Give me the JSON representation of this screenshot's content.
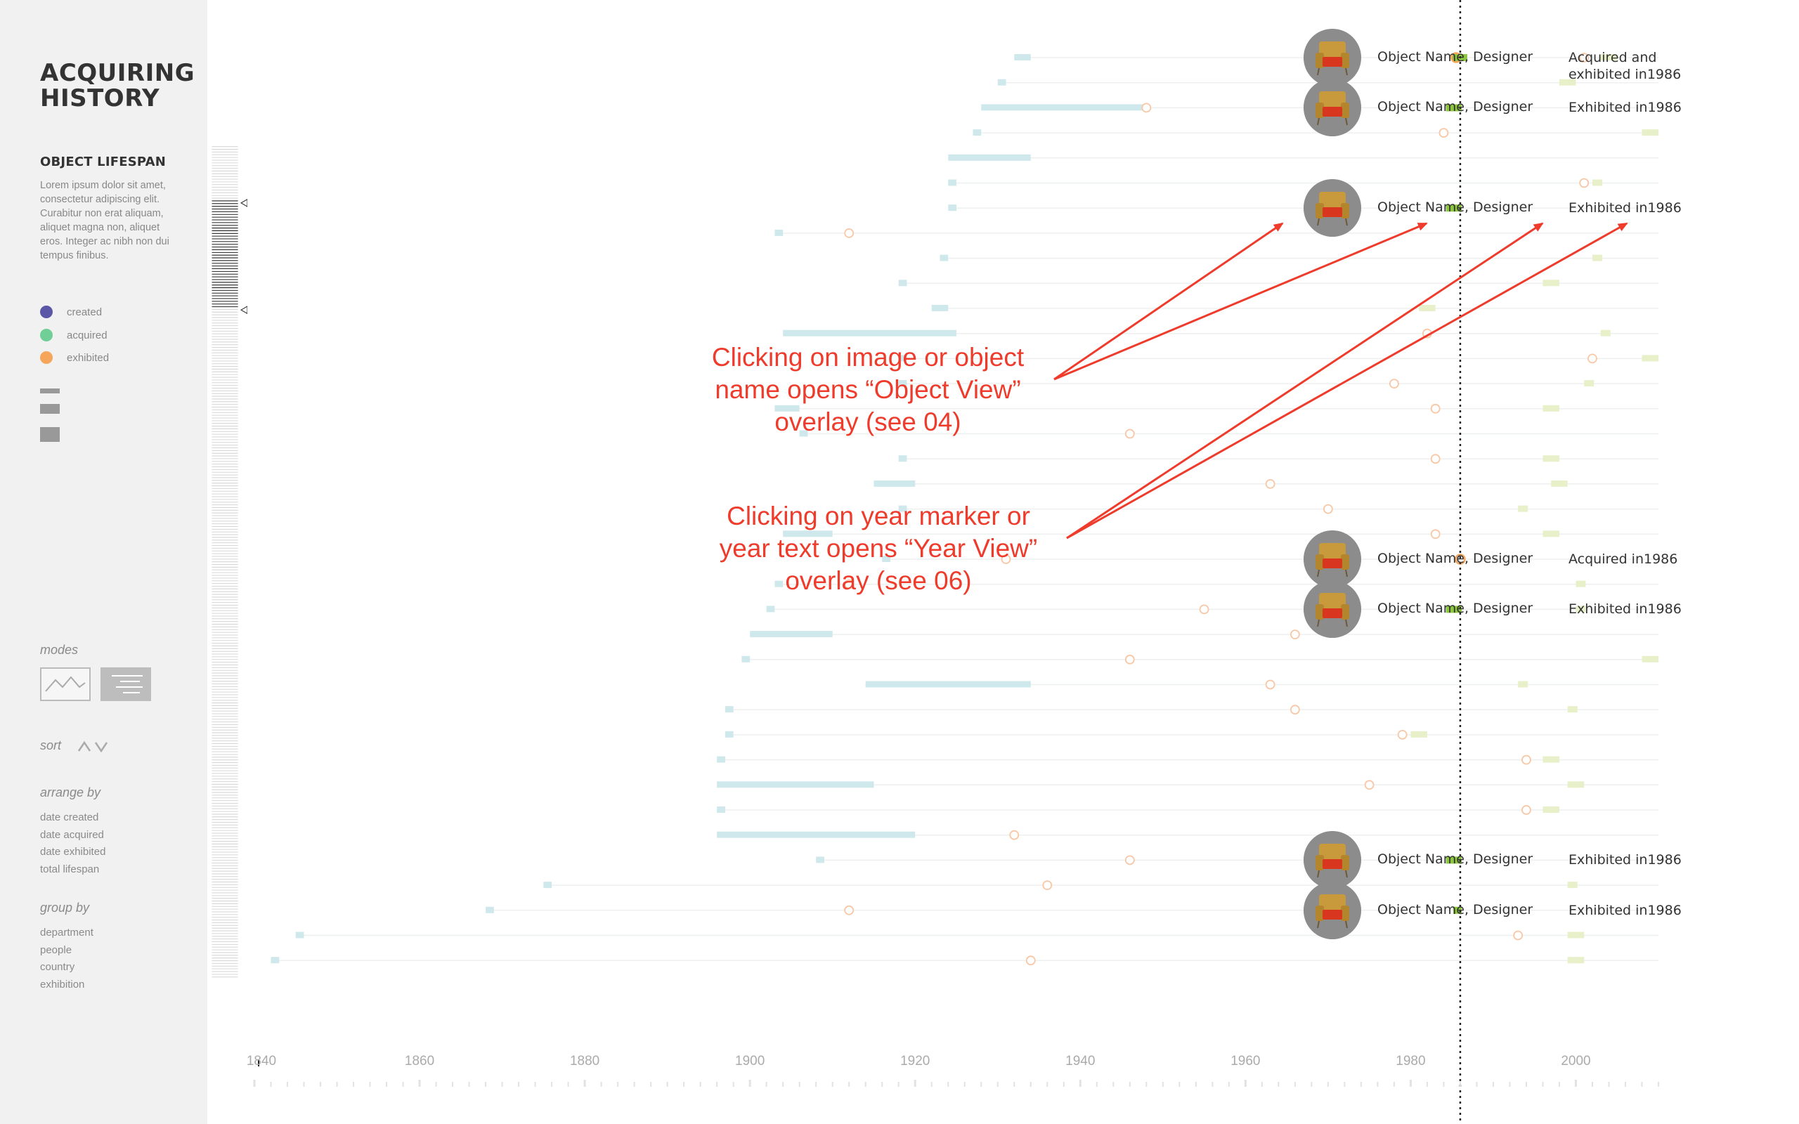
{
  "sidebar": {
    "title": "ACQUIRING HISTORY",
    "section_title": "OBJECT LIFESPAN",
    "description": "Lorem ipsum dolor sit amet, consectetur adipiscing elit. Curabitur non erat aliquam, aliquet magna non, aliquet eros. Integer ac nibh non dui tempus finibus.",
    "legend": [
      {
        "label": "created",
        "color": "#5b57a6"
      },
      {
        "label": "acquired",
        "color": "#6fcf97"
      },
      {
        "label": "exhibited",
        "color": "#f5a65b"
      }
    ],
    "modes_label": "modes",
    "sort_label": "sort",
    "arrange_label": "arrange by",
    "arrange_options": [
      "date created",
      "date acquired",
      "date exhibited",
      "total lifespan"
    ],
    "group_label": "group by",
    "group_options": [
      "department",
      "people",
      "country",
      "exhibition"
    ]
  },
  "timeline": {
    "axis_years": [
      "1840",
      "1860",
      "1880",
      "1900",
      "1920",
      "1940",
      "1960",
      "1980",
      "2000"
    ],
    "axis_min": 1840,
    "axis_max": 2010,
    "current_year": 1986,
    "colors": {
      "created": "#cfe8ec",
      "acquired": "#e7f0c9",
      "exhibited": "#f8c7a6",
      "highlight": "#8dc63f",
      "acquired_marker": "#f5a65b"
    },
    "rows": [
      {
        "created": [
          1932,
          1934
        ],
        "acquired": [
          2003,
          2005
        ],
        "exhibited": [
          2001
        ],
        "label": "Object Name, Designer",
        "status": "Acquired and\nexhibited in1986",
        "marker": "acquired-exhibited"
      },
      {
        "created": [
          1930,
          1931
        ],
        "acquired": [
          1998,
          2000
        ],
        "exhibited": []
      },
      {
        "created": [
          1928,
          1948
        ],
        "exhibited": [
          1948
        ],
        "acquired": [],
        "label": "Object Name, Designer",
        "status": "Exhibited in1986",
        "marker": "exhibited"
      },
      {
        "created": [
          1927,
          1928
        ],
        "acquired": [
          2008,
          2010
        ],
        "exhibited": [
          1984
        ]
      },
      {
        "created": [
          1924,
          1934
        ],
        "acquired": [],
        "exhibited": []
      },
      {
        "created": [
          1924,
          1925
        ],
        "acquired": [
          2002,
          2003
        ],
        "exhibited": [
          2001
        ]
      },
      {
        "created": [
          1924,
          1925
        ],
        "acquired": [],
        "exhibited": [],
        "label": "Object Name, Designer",
        "status": "Exhibited in1986",
        "marker": "exhibited"
      },
      {
        "created": [
          1903,
          1904
        ],
        "acquired": [],
        "exhibited": [
          1912
        ]
      },
      {
        "created": [
          1923,
          1924
        ],
        "acquired": [
          2002,
          2003
        ],
        "exhibited": []
      },
      {
        "created": [
          1918,
          1919
        ],
        "acquired": [
          1996,
          1998
        ],
        "exhibited": []
      },
      {
        "created": [
          1922,
          1924
        ],
        "acquired": [
          1981,
          1983
        ],
        "exhibited": []
      },
      {
        "created": [
          1904,
          1925
        ],
        "acquired": [
          2003,
          2004
        ],
        "exhibited": [
          1982
        ]
      },
      {
        "created": [
          1918,
          1919
        ],
        "acquired": [
          2008,
          2010
        ],
        "exhibited": [
          2002
        ]
      },
      {
        "created": [
          1918,
          1919
        ],
        "acquired": [
          2001,
          2002
        ],
        "exhibited": [
          1978
        ]
      },
      {
        "created": [
          1903,
          1906
        ],
        "acquired": [
          1996,
          1998
        ],
        "exhibited": [
          1983
        ]
      },
      {
        "created": [
          1906,
          1907
        ],
        "acquired": [],
        "exhibited": [
          1946
        ]
      },
      {
        "created": [
          1918,
          1919
        ],
        "acquired": [
          1996,
          1998
        ],
        "exhibited": [
          1983
        ]
      },
      {
        "created": [
          1915,
          1920
        ],
        "acquired": [
          1997,
          1999
        ],
        "exhibited": [
          1963
        ]
      },
      {
        "created": [
          1918,
          1919
        ],
        "acquired": [
          1993,
          1994
        ],
        "exhibited": [
          1970
        ]
      },
      {
        "created": [
          1904,
          1910
        ],
        "acquired": [
          1996,
          1998
        ],
        "exhibited": [
          1983
        ]
      },
      {
        "created": [
          1916,
          1917
        ],
        "acquired": [],
        "exhibited": [
          1931
        ],
        "label": "Object Name, Designer",
        "status": "Acquired in1986",
        "marker": "acquired"
      },
      {
        "created": [
          1903,
          1904
        ],
        "acquired": [
          2000,
          2001
        ],
        "exhibited": [
          1912
        ]
      },
      {
        "created": [
          1902,
          1903
        ],
        "acquired": [
          2000,
          2001
        ],
        "exhibited": [
          1955
        ],
        "label": "Object Name, Designer",
        "status": "Exhibited in1986",
        "marker": "exhibited"
      },
      {
        "created": [
          1900,
          1910
        ],
        "acquired": [],
        "exhibited": [
          1966
        ]
      },
      {
        "created": [
          1899,
          1900
        ],
        "acquired": [
          2008,
          2010
        ],
        "exhibited": [
          1946
        ]
      },
      {
        "created": [
          1914,
          1934
        ],
        "acquired": [
          1993,
          1994
        ],
        "exhibited": [
          1963
        ]
      },
      {
        "created": [
          1897,
          1898
        ],
        "acquired": [
          1999,
          2000
        ],
        "exhibited": [
          1966
        ]
      },
      {
        "created": [
          1897,
          1898
        ],
        "acquired": [
          1980,
          1982
        ],
        "exhibited": [
          1979
        ]
      },
      {
        "created": [
          1896,
          1897
        ],
        "acquired": [
          1996,
          1998
        ],
        "exhibited": [
          1994
        ]
      },
      {
        "created": [
          1896,
          1915
        ],
        "acquired": [
          1999,
          2001
        ],
        "exhibited": [
          1975
        ]
      },
      {
        "created": [
          1896,
          1897
        ],
        "acquired": [
          1996,
          1998
        ],
        "exhibited": [
          1994
        ]
      },
      {
        "created": [
          1896,
          1920
        ],
        "acquired": [],
        "exhibited": [
          1932
        ]
      },
      {
        "created": [
          1908,
          1909
        ],
        "acquired": [],
        "exhibited": [
          1946
        ],
        "label": "Object Name, Designer",
        "status": "Exhibited in1986",
        "marker": "exhibited"
      },
      {
        "created": [
          1875,
          1876
        ],
        "acquired": [
          1999,
          2000
        ],
        "exhibited": [
          1936
        ]
      },
      {
        "created": [
          1868,
          1869
        ],
        "acquired": [],
        "exhibited": [
          1912
        ],
        "label": "Object Name, Designer",
        "status": "Exhibited in1986",
        "marker": "exhibited-small"
      },
      {
        "created": [
          1845,
          1846
        ],
        "acquired": [
          1999,
          2001
        ],
        "exhibited": [
          1993
        ]
      },
      {
        "created": [
          1842,
          1843
        ],
        "acquired": [
          1999,
          2001
        ],
        "exhibited": [
          1934
        ]
      }
    ]
  },
  "annotations": {
    "object_view": "Clicking on image or object\nname opens “Object View”\noverlay (see 04)",
    "year_view": "Clicking on year marker or\nyear text opens “Year View”\noverlay (see 06)"
  }
}
